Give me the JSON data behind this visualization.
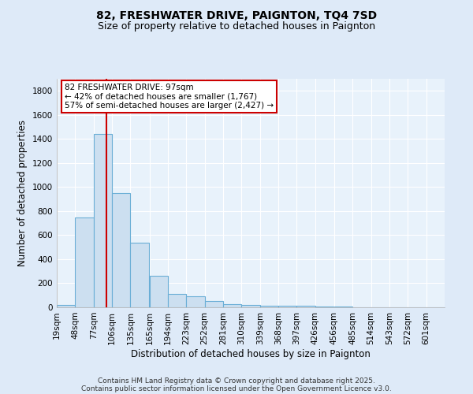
{
  "title": "82, FRESHWATER DRIVE, PAIGNTON, TQ4 7SD",
  "subtitle": "Size of property relative to detached houses in Paignton",
  "xlabel": "Distribution of detached houses by size in Paignton",
  "ylabel": "Number of detached properties",
  "bar_color": "#ccdff0",
  "bar_edge_color": "#6aaed6",
  "bg_color": "#e8f2fb",
  "grid_color": "#ffffff",
  "red_line_x": 97,
  "annotation_line1": "82 FRESHWATER DRIVE: 97sqm",
  "annotation_line2": "← 42% of detached houses are smaller (1,767)",
  "annotation_line3": "57% of semi-detached houses are larger (2,427) →",
  "categories": [
    "19sqm",
    "48sqm",
    "77sqm",
    "106sqm",
    "135sqm",
    "165sqm",
    "194sqm",
    "223sqm",
    "252sqm",
    "281sqm",
    "310sqm",
    "339sqm",
    "368sqm",
    "397sqm",
    "426sqm",
    "456sqm",
    "485sqm",
    "514sqm",
    "543sqm",
    "572sqm",
    "601sqm"
  ],
  "bin_starts": [
    19,
    48,
    77,
    106,
    135,
    165,
    194,
    223,
    252,
    281,
    310,
    339,
    368,
    397,
    426,
    456,
    485,
    514,
    543,
    572,
    601
  ],
  "bin_width": 29,
  "values": [
    20,
    750,
    1440,
    950,
    540,
    265,
    110,
    90,
    50,
    28,
    20,
    15,
    10,
    10,
    5,
    5,
    3,
    2,
    2,
    2,
    2
  ],
  "ylim": [
    0,
    1900
  ],
  "yticks": [
    0,
    200,
    400,
    600,
    800,
    1000,
    1200,
    1400,
    1600,
    1800
  ],
  "footnote1": "Contains HM Land Registry data © Crown copyright and database right 2025.",
  "footnote2": "Contains public sector information licensed under the Open Government Licence v3.0.",
  "title_fontsize": 10,
  "subtitle_fontsize": 9,
  "label_fontsize": 8.5,
  "tick_fontsize": 7.5,
  "footnote_fontsize": 6.5,
  "ann_fontsize": 7.5
}
